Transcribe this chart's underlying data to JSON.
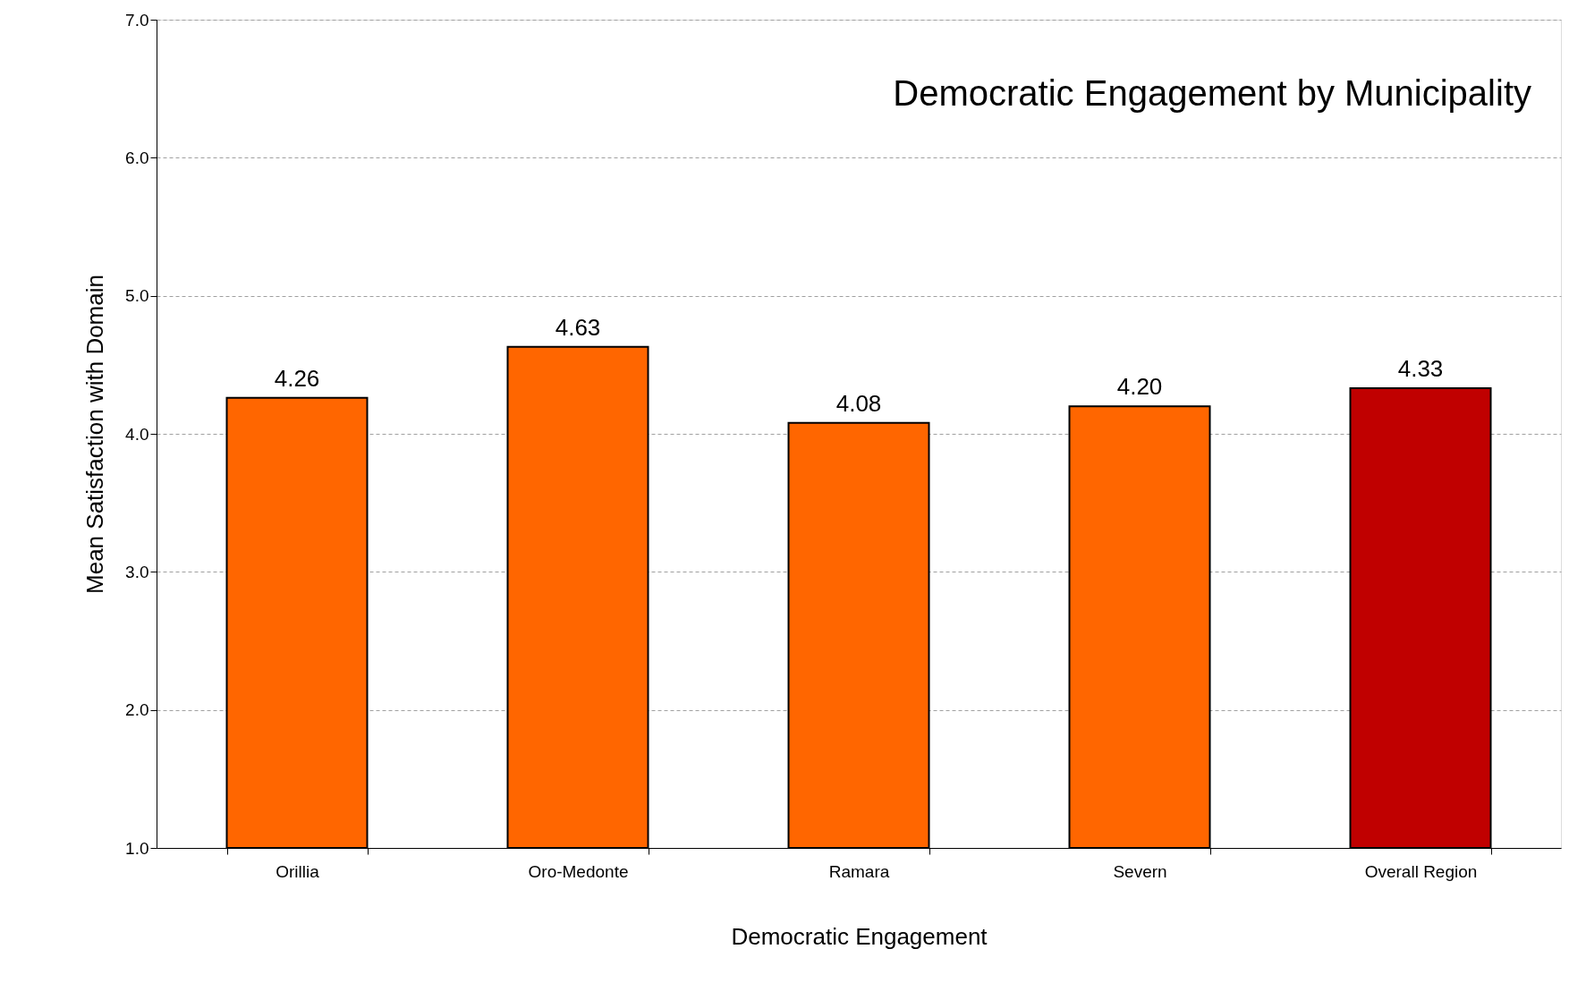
{
  "chart_data": {
    "type": "bar",
    "title": "Democratic Engagement by Municipality",
    "xlabel": "Democratic Engagement",
    "ylabel": "Mean Satisfaction with Domain",
    "categories": [
      "Orillia",
      "Oro-Medonte",
      "Ramara",
      "Severn",
      "Overall Region"
    ],
    "values": [
      4.26,
      4.63,
      4.08,
      4.2,
      4.33
    ],
    "value_labels": [
      "4.26",
      "4.63",
      "4.08",
      "4.20",
      "4.33"
    ],
    "colors": [
      "#ff6600",
      "#ff6600",
      "#ff6600",
      "#ff6600",
      "#c00000"
    ],
    "ylim": [
      1,
      7
    ],
    "yticks": [
      {
        "value": 1,
        "label": "1.0"
      },
      {
        "value": 2,
        "label": "2.0"
      },
      {
        "value": 3,
        "label": "3.0"
      },
      {
        "value": 4,
        "label": "4.0"
      },
      {
        "value": 5,
        "label": "5.0"
      },
      {
        "value": 6,
        "label": "6.0"
      },
      {
        "value": 7,
        "label": "7.0"
      }
    ],
    "grid": "y"
  }
}
